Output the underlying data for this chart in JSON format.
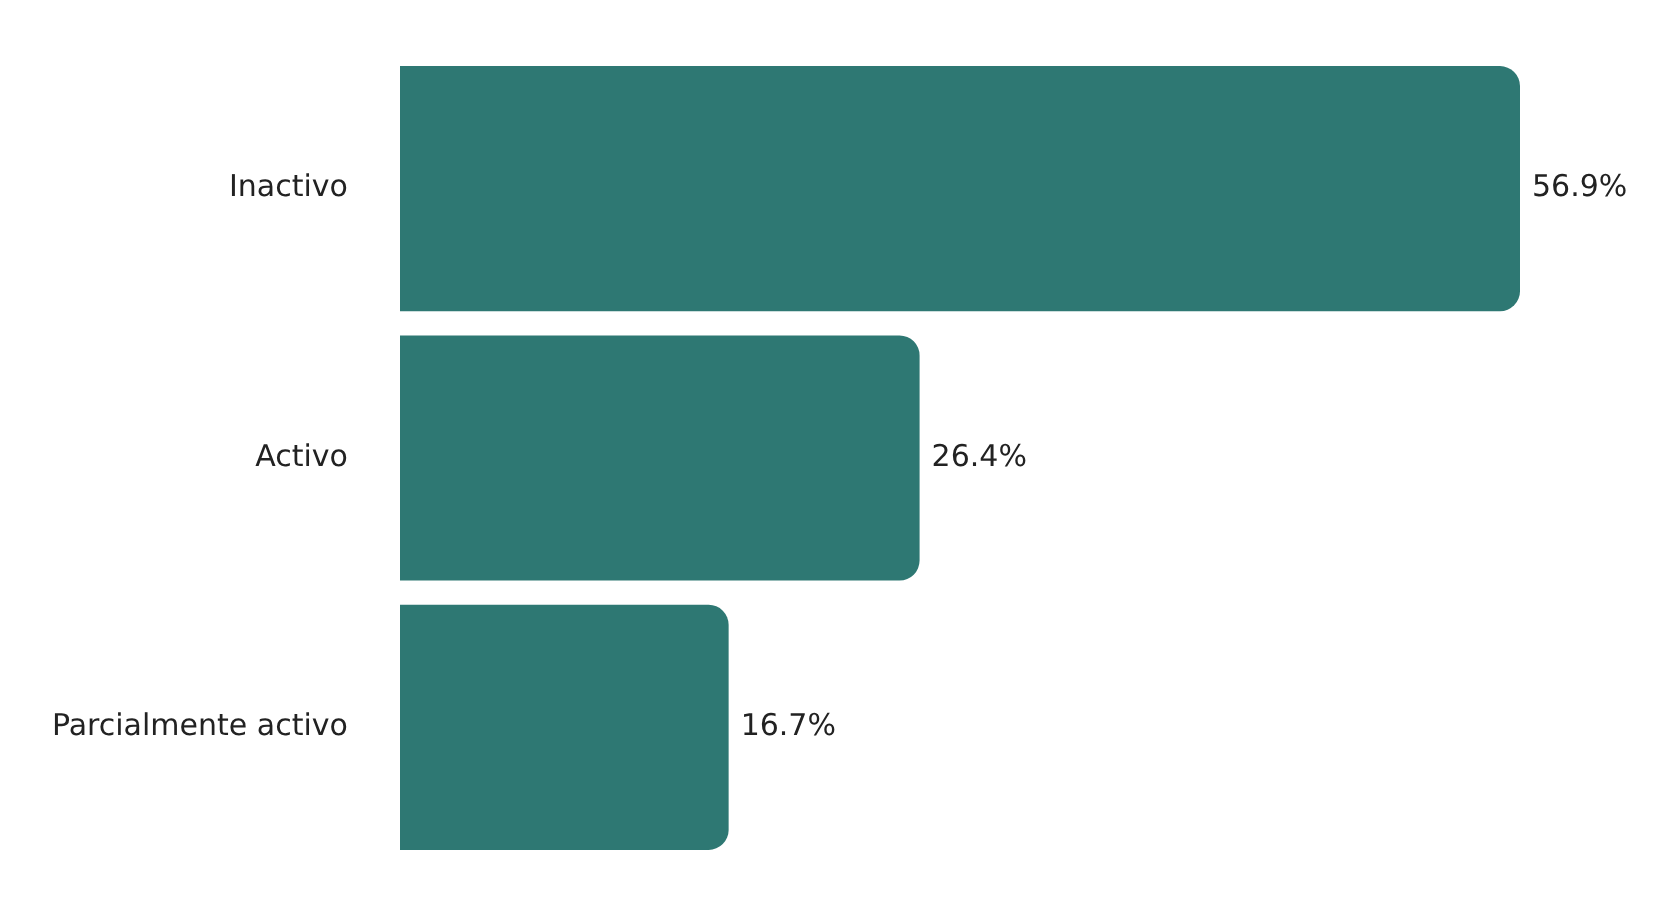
{
  "chart_data": {
    "type": "bar",
    "orientation": "horizontal",
    "categories": [
      "Inactivo",
      "Activo",
      "Parcialmente activo"
    ],
    "values": [
      56.9,
      26.4,
      16.7
    ],
    "value_labels": [
      "56.9%",
      "26.4%",
      "16.7%"
    ],
    "color": "#2e7873"
  }
}
